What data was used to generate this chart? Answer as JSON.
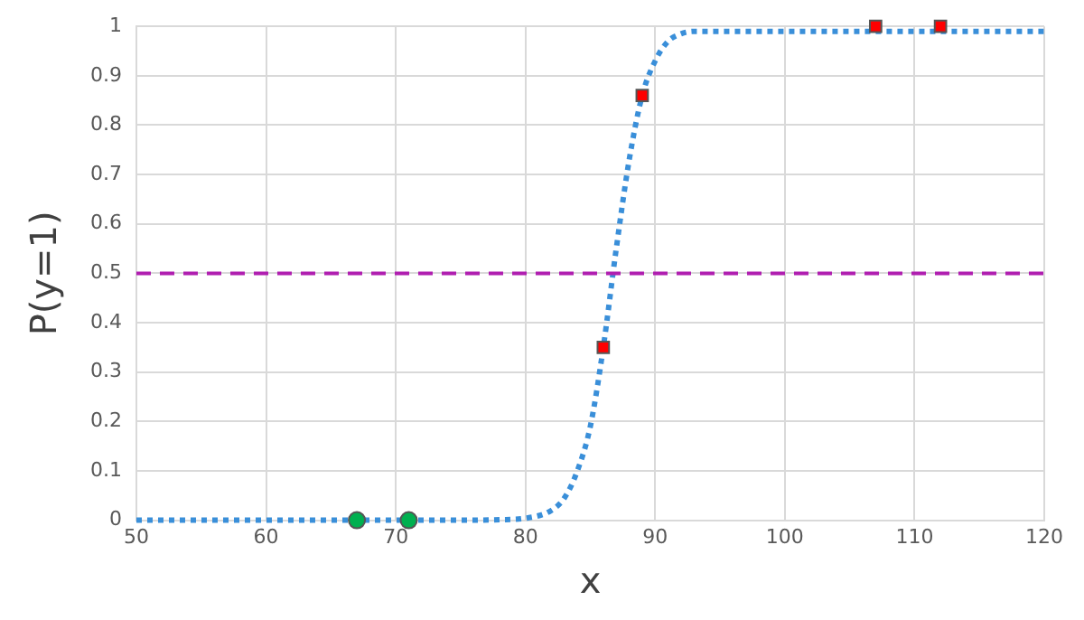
{
  "chart_data": {
    "type": "line",
    "xlabel": "x",
    "ylabel": "P(y=1)",
    "xlim": [
      50,
      120
    ],
    "xticks": [
      50,
      60,
      70,
      80,
      90,
      100,
      110,
      120
    ],
    "ylim": [
      0,
      1
    ],
    "yticks": [
      0,
      0.1,
      0.2,
      0.3,
      0.4,
      0.5,
      0.6,
      0.7,
      0.8,
      0.9,
      1
    ],
    "grid": true,
    "legend": false,
    "series": [
      {
        "type": "line",
        "color": "#3a8fd9",
        "line_style": "dotted",
        "marker": "none",
        "x": [
          50,
          60,
          70,
          75,
          78,
          80,
          82,
          83,
          84,
          85,
          86,
          87,
          88,
          89,
          90,
          91,
          92,
          93,
          95,
          100,
          110,
          120
        ],
        "values": [
          0,
          0,
          0,
          0,
          0.001,
          0.004,
          0.02,
          0.045,
          0.1,
          0.19,
          0.35,
          0.55,
          0.73,
          0.86,
          0.93,
          0.97,
          0.985,
          0.99,
          0.99,
          0.99,
          0.99,
          0.99
        ]
      },
      {
        "type": "scatter",
        "color": "#00b050",
        "marker": "circle",
        "x": [
          67,
          71
        ],
        "values": [
          0,
          0
        ]
      },
      {
        "type": "scatter",
        "color": "#ff0000",
        "marker": "square",
        "x": [
          86,
          89,
          107,
          112
        ],
        "values": [
          0.35,
          0.86,
          1,
          1
        ]
      }
    ],
    "ref_lines": [
      {
        "axis": "y",
        "value": 0.5,
        "color": "#b01fb0",
        "line_style": "dashed"
      }
    ]
  }
}
